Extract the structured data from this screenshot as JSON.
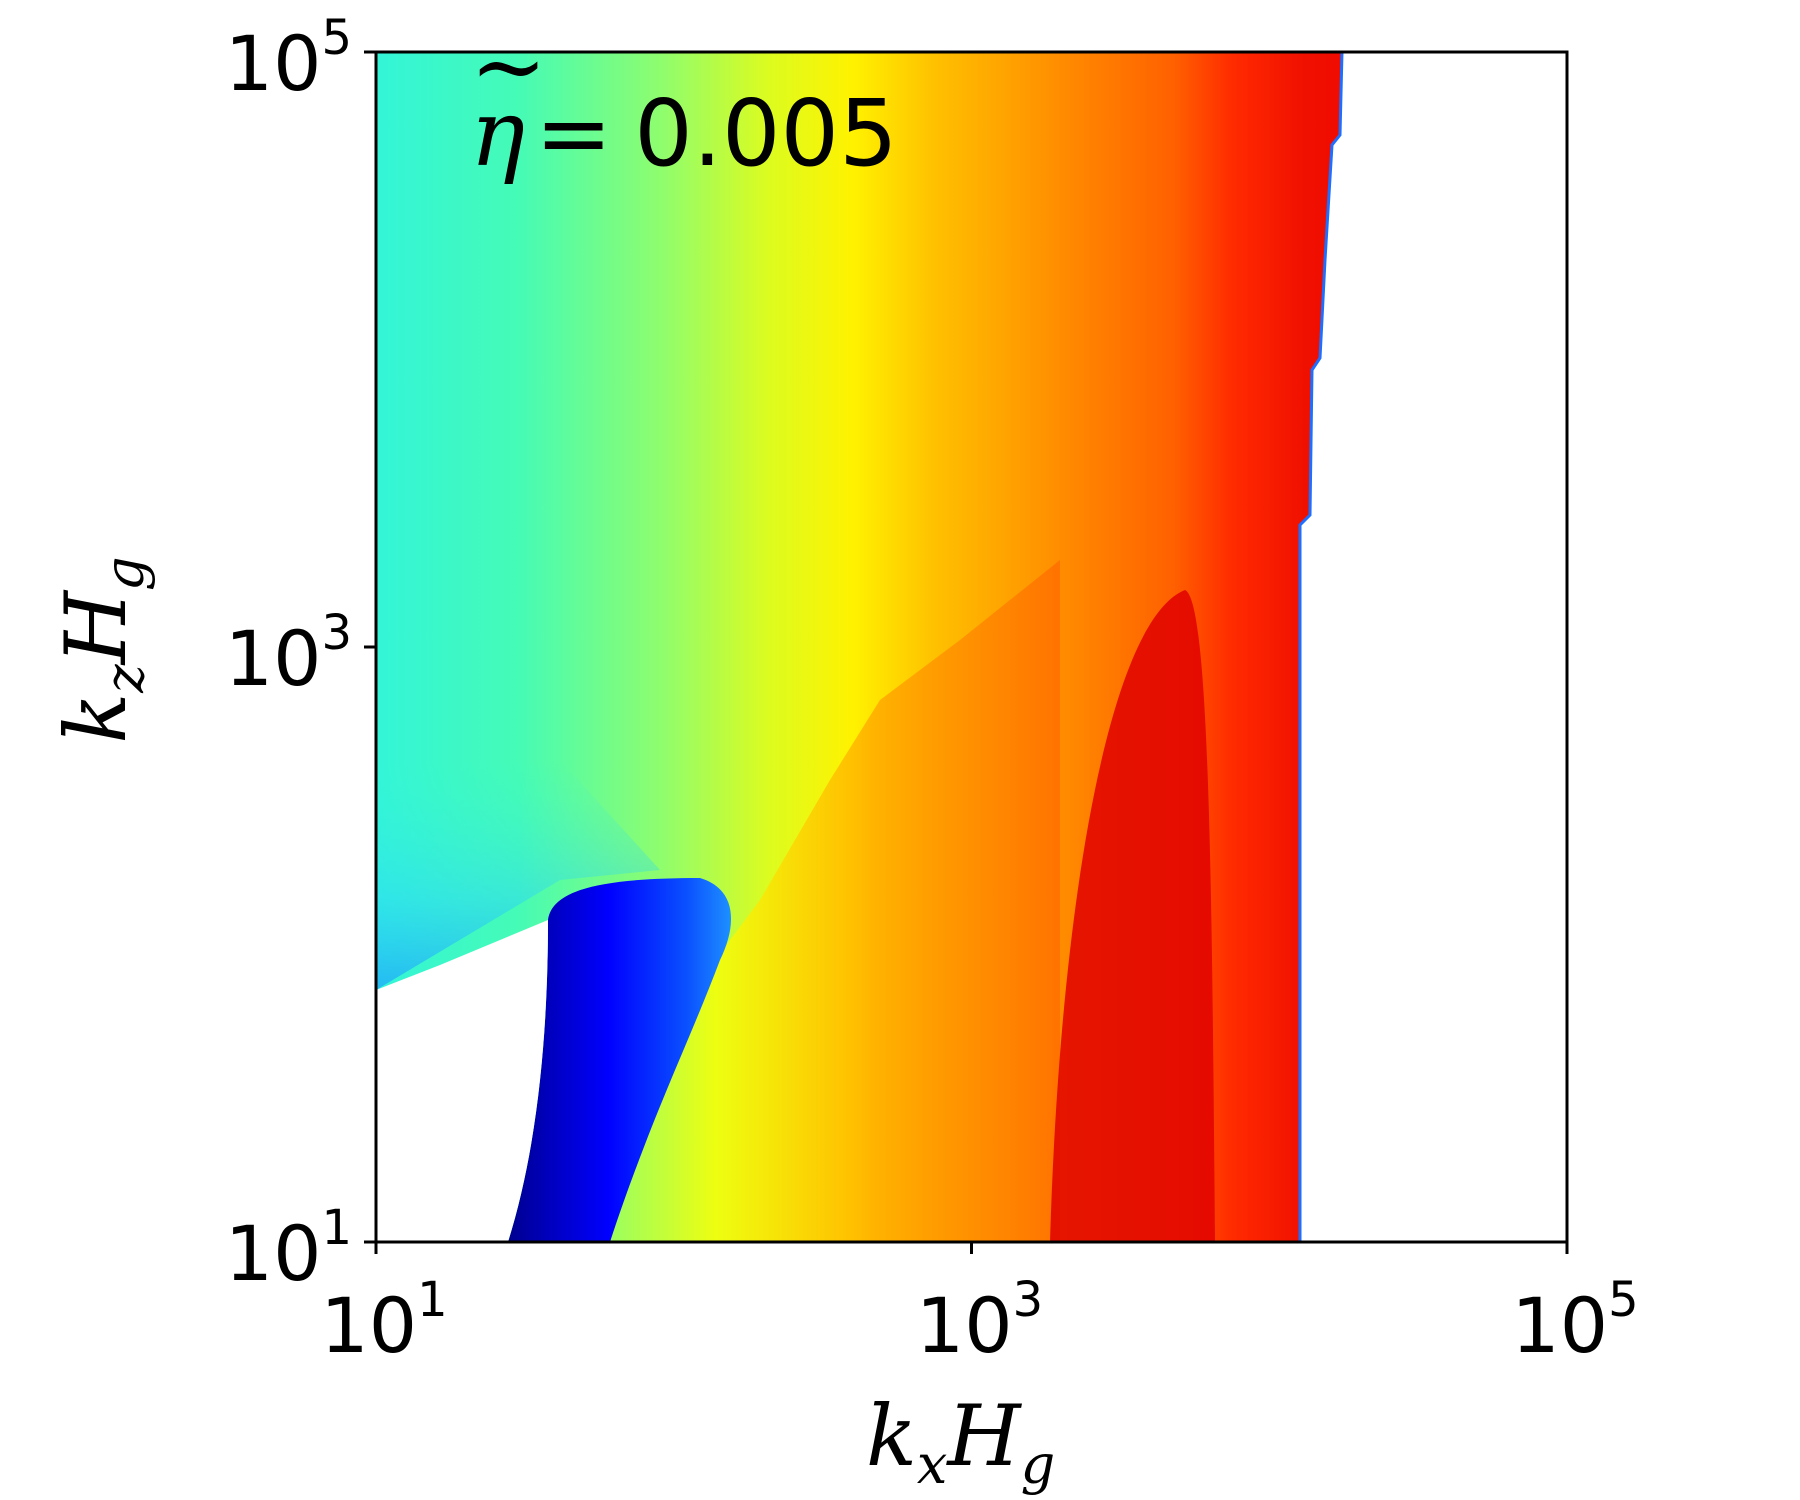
{
  "chart_data": {
    "type": "heatmap",
    "title": "",
    "xlabel": {
      "base": "k",
      "sub": "x",
      "base2": "H",
      "sub2": "g"
    },
    "ylabel": {
      "base": "k",
      "sub": "z",
      "base2": "H",
      "sub2": "g"
    },
    "xscale": "log",
    "yscale": "log",
    "xlim": [
      10,
      100000
    ],
    "ylim": [
      10,
      100000
    ],
    "xticks": [
      {
        "value": 10,
        "base": "10",
        "exp": "1"
      },
      {
        "value": 1000,
        "base": "10",
        "exp": "3"
      },
      {
        "value": 100000,
        "base": "10",
        "exp": "5"
      }
    ],
    "yticks": [
      {
        "value": 10,
        "base": "10",
        "exp": "1"
      },
      {
        "value": 1000,
        "base": "10",
        "exp": "3"
      },
      {
        "value": 100000,
        "base": "10",
        "exp": "5"
      }
    ],
    "annotation": {
      "symbol": "η",
      "accent": "~",
      "equals": "=",
      "value": "0.005"
    },
    "colormap": "jet",
    "grid": false,
    "colorbar": false
  }
}
